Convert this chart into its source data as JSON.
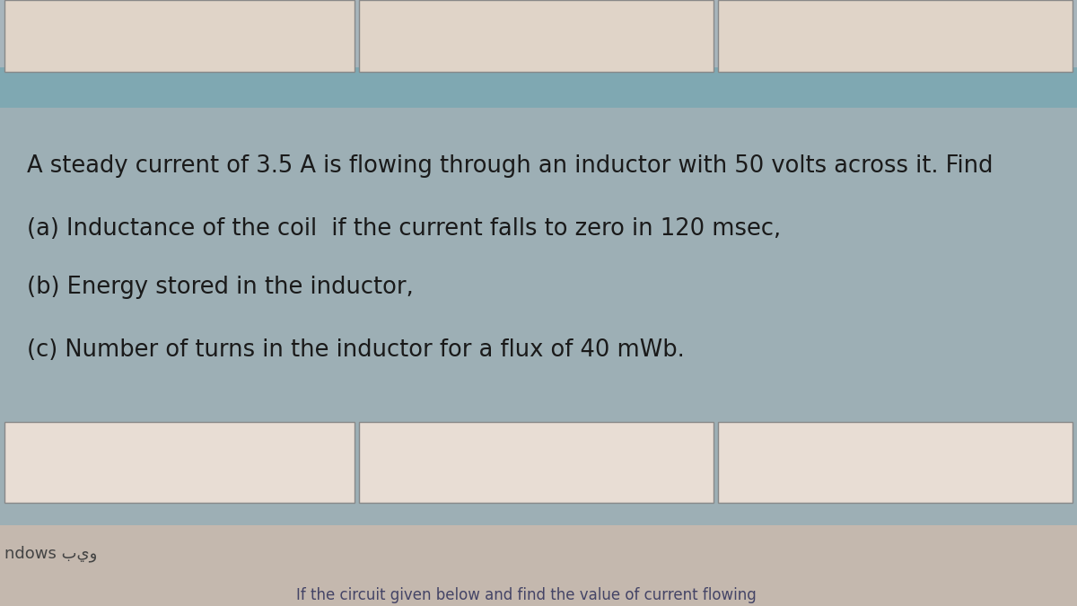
{
  "bg_outer": "#a8b5bc",
  "bg_main": "#9dafb5",
  "bg_bottom": "#c4b8ae",
  "top_strip_color": "#7fa8b2",
  "white_box_color": "#e8ddd4",
  "white_box_top_color": "#e0d4c8",
  "text_color": "#1a1a1a",
  "line1": "A steady current of 3.5 A is flowing through an inductor with 50 volts across it. Find",
  "line2": "(a) Inductance of the coil  if the current falls to zero in 120 msec,",
  "line3": "(b) Energy stored in the inductor,",
  "line4": "(c) Number of turns in the inductor for a flux of 40 mWb.",
  "bottom_text1": "ndows بيو",
  "bottom_text2": "If the circuit given below and find the value of current flowing",
  "font_size": 18.5,
  "box_edge_color": "#888888"
}
